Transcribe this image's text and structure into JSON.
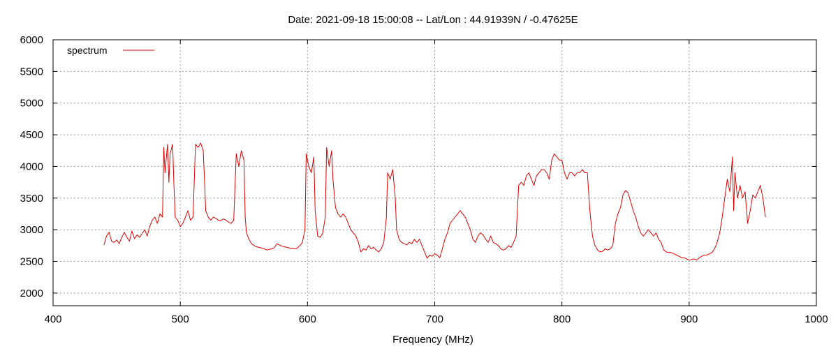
{
  "chart_data": {
    "type": "line",
    "title": "Date: 2021-09-18 15:00:08  --  Lat/Lon : 44.91939N / -0.47625E",
    "xlabel": "Frequency (MHz)",
    "ylabel": "",
    "xlim": [
      400,
      1000
    ],
    "ylim": [
      1800,
      6000
    ],
    "x_ticks": [
      400,
      500,
      600,
      700,
      800,
      900,
      1000
    ],
    "y_ticks": [
      2000,
      2500,
      3000,
      3500,
      4000,
      4500,
      5000,
      5500,
      6000
    ],
    "grid": true,
    "legend_position": "top-left",
    "colors": {
      "series": "#e00000",
      "grid": "#a0a0a0",
      "axis": "#000000"
    },
    "series": [
      {
        "name": "spectrum",
        "points": [
          [
            440,
            2760
          ],
          [
            442,
            2900
          ],
          [
            444,
            2960
          ],
          [
            446,
            2820
          ],
          [
            448,
            2800
          ],
          [
            450,
            2840
          ],
          [
            452,
            2780
          ],
          [
            454,
            2880
          ],
          [
            456,
            2960
          ],
          [
            458,
            2880
          ],
          [
            460,
            2820
          ],
          [
            462,
            2980
          ],
          [
            464,
            2860
          ],
          [
            466,
            2920
          ],
          [
            468,
            2880
          ],
          [
            470,
            2940
          ],
          [
            472,
            3000
          ],
          [
            474,
            2900
          ],
          [
            476,
            3050
          ],
          [
            478,
            3150
          ],
          [
            480,
            3200
          ],
          [
            482,
            3100
          ],
          [
            484,
            3250
          ],
          [
            486,
            3200
          ],
          [
            487,
            4300
          ],
          [
            488,
            3900
          ],
          [
            490,
            4350
          ],
          [
            491,
            3750
          ],
          [
            492,
            4200
          ],
          [
            494,
            4350
          ],
          [
            495,
            3700
          ],
          [
            496,
            3200
          ],
          [
            498,
            3150
          ],
          [
            500,
            3050
          ],
          [
            502,
            3100
          ],
          [
            504,
            3200
          ],
          [
            506,
            3300
          ],
          [
            508,
            3150
          ],
          [
            510,
            3200
          ],
          [
            512,
            4350
          ],
          [
            514,
            4300
          ],
          [
            516,
            4370
          ],
          [
            518,
            4250
          ],
          [
            519,
            3800
          ],
          [
            520,
            3300
          ],
          [
            522,
            3200
          ],
          [
            524,
            3150
          ],
          [
            526,
            3200
          ],
          [
            528,
            3180
          ],
          [
            530,
            3150
          ],
          [
            532,
            3150
          ],
          [
            534,
            3170
          ],
          [
            536,
            3150
          ],
          [
            538,
            3120
          ],
          [
            540,
            3100
          ],
          [
            542,
            3150
          ],
          [
            544,
            4200
          ],
          [
            546,
            4000
          ],
          [
            548,
            4250
          ],
          [
            550,
            4100
          ],
          [
            551,
            3200
          ],
          [
            552,
            2950
          ],
          [
            554,
            2850
          ],
          [
            556,
            2780
          ],
          [
            558,
            2750
          ],
          [
            560,
            2730
          ],
          [
            562,
            2720
          ],
          [
            564,
            2710
          ],
          [
            566,
            2700
          ],
          [
            568,
            2680
          ],
          [
            570,
            2690
          ],
          [
            572,
            2700
          ],
          [
            574,
            2720
          ],
          [
            576,
            2780
          ],
          [
            578,
            2760
          ],
          [
            580,
            2740
          ],
          [
            582,
            2730
          ],
          [
            584,
            2720
          ],
          [
            586,
            2710
          ],
          [
            588,
            2700
          ],
          [
            590,
            2700
          ],
          [
            592,
            2710
          ],
          [
            594,
            2750
          ],
          [
            596,
            2800
          ],
          [
            598,
            3000
          ],
          [
            599,
            4200
          ],
          [
            601,
            4000
          ],
          [
            603,
            3900
          ],
          [
            605,
            4150
          ],
          [
            606,
            3300
          ],
          [
            608,
            2900
          ],
          [
            610,
            2880
          ],
          [
            612,
            2950
          ],
          [
            614,
            3200
          ],
          [
            615,
            4300
          ],
          [
            617,
            4000
          ],
          [
            619,
            4250
          ],
          [
            620,
            3800
          ],
          [
            622,
            3350
          ],
          [
            624,
            3250
          ],
          [
            626,
            3200
          ],
          [
            628,
            3250
          ],
          [
            630,
            3200
          ],
          [
            632,
            3100
          ],
          [
            634,
            3000
          ],
          [
            636,
            2950
          ],
          [
            638,
            2900
          ],
          [
            640,
            2800
          ],
          [
            642,
            2650
          ],
          [
            644,
            2700
          ],
          [
            646,
            2680
          ],
          [
            648,
            2750
          ],
          [
            650,
            2700
          ],
          [
            652,
            2720
          ],
          [
            654,
            2680
          ],
          [
            656,
            2650
          ],
          [
            658,
            2700
          ],
          [
            660,
            2800
          ],
          [
            662,
            3200
          ],
          [
            663,
            3900
          ],
          [
            665,
            3800
          ],
          [
            667,
            3950
          ],
          [
            669,
            3500
          ],
          [
            670,
            3000
          ],
          [
            672,
            2850
          ],
          [
            674,
            2800
          ],
          [
            676,
            2780
          ],
          [
            678,
            2760
          ],
          [
            680,
            2800
          ],
          [
            682,
            2780
          ],
          [
            684,
            2850
          ],
          [
            686,
            2800
          ],
          [
            688,
            2850
          ],
          [
            690,
            2750
          ],
          [
            692,
            2650
          ],
          [
            694,
            2550
          ],
          [
            696,
            2600
          ],
          [
            698,
            2580
          ],
          [
            700,
            2620
          ],
          [
            702,
            2600
          ],
          [
            704,
            2560
          ],
          [
            706,
            2700
          ],
          [
            708,
            2850
          ],
          [
            710,
            2950
          ],
          [
            712,
            3100
          ],
          [
            714,
            3150
          ],
          [
            716,
            3200
          ],
          [
            718,
            3250
          ],
          [
            720,
            3300
          ],
          [
            722,
            3250
          ],
          [
            724,
            3200
          ],
          [
            726,
            3100
          ],
          [
            728,
            3000
          ],
          [
            730,
            2850
          ],
          [
            732,
            2800
          ],
          [
            734,
            2900
          ],
          [
            736,
            2950
          ],
          [
            738,
            2920
          ],
          [
            740,
            2850
          ],
          [
            742,
            2800
          ],
          [
            744,
            2900
          ],
          [
            746,
            2800
          ],
          [
            748,
            2780
          ],
          [
            750,
            2750
          ],
          [
            752,
            2700
          ],
          [
            754,
            2680
          ],
          [
            756,
            2700
          ],
          [
            758,
            2750
          ],
          [
            760,
            2720
          ],
          [
            762,
            2800
          ],
          [
            764,
            2900
          ],
          [
            766,
            3700
          ],
          [
            768,
            3750
          ],
          [
            770,
            3700
          ],
          [
            772,
            3850
          ],
          [
            774,
            3900
          ],
          [
            776,
            3800
          ],
          [
            778,
            3700
          ],
          [
            780,
            3850
          ],
          [
            782,
            3900
          ],
          [
            784,
            3950
          ],
          [
            786,
            3950
          ],
          [
            788,
            3900
          ],
          [
            790,
            3800
          ],
          [
            792,
            4100
          ],
          [
            794,
            4200
          ],
          [
            796,
            4150
          ],
          [
            798,
            4100
          ],
          [
            800,
            4100
          ],
          [
            802,
            3900
          ],
          [
            804,
            3800
          ],
          [
            806,
            3900
          ],
          [
            808,
            3900
          ],
          [
            810,
            3850
          ],
          [
            812,
            3900
          ],
          [
            814,
            3900
          ],
          [
            816,
            3950
          ],
          [
            818,
            3900
          ],
          [
            820,
            3900
          ],
          [
            822,
            3300
          ],
          [
            824,
            2900
          ],
          [
            826,
            2750
          ],
          [
            828,
            2680
          ],
          [
            830,
            2650
          ],
          [
            832,
            2660
          ],
          [
            834,
            2700
          ],
          [
            836,
            2680
          ],
          [
            838,
            2700
          ],
          [
            840,
            2750
          ],
          [
            842,
            3100
          ],
          [
            844,
            3250
          ],
          [
            846,
            3350
          ],
          [
            848,
            3550
          ],
          [
            850,
            3620
          ],
          [
            852,
            3580
          ],
          [
            854,
            3450
          ],
          [
            856,
            3300
          ],
          [
            858,
            3200
          ],
          [
            860,
            3050
          ],
          [
            862,
            2950
          ],
          [
            864,
            2900
          ],
          [
            866,
            2950
          ],
          [
            868,
            3000
          ],
          [
            870,
            2950
          ],
          [
            872,
            2900
          ],
          [
            874,
            2950
          ],
          [
            876,
            2850
          ],
          [
            878,
            2800
          ],
          [
            880,
            2680
          ],
          [
            882,
            2650
          ],
          [
            884,
            2640
          ],
          [
            886,
            2640
          ],
          [
            888,
            2620
          ],
          [
            890,
            2600
          ],
          [
            892,
            2580
          ],
          [
            894,
            2560
          ],
          [
            896,
            2560
          ],
          [
            898,
            2540
          ],
          [
            900,
            2520
          ],
          [
            902,
            2530
          ],
          [
            904,
            2540
          ],
          [
            906,
            2520
          ],
          [
            908,
            2560
          ],
          [
            910,
            2580
          ],
          [
            912,
            2600
          ],
          [
            914,
            2600
          ],
          [
            916,
            2620
          ],
          [
            918,
            2640
          ],
          [
            920,
            2700
          ],
          [
            922,
            2800
          ],
          [
            924,
            2950
          ],
          [
            926,
            3200
          ],
          [
            928,
            3500
          ],
          [
            930,
            3800
          ],
          [
            932,
            3600
          ],
          [
            934,
            4150
          ],
          [
            935,
            3300
          ],
          [
            936,
            3900
          ],
          [
            938,
            3500
          ],
          [
            940,
            3700
          ],
          [
            942,
            3500
          ],
          [
            944,
            3600
          ],
          [
            946,
            3100
          ],
          [
            948,
            3300
          ],
          [
            950,
            3550
          ],
          [
            952,
            3500
          ],
          [
            954,
            3600
          ],
          [
            956,
            3700
          ],
          [
            958,
            3500
          ],
          [
            960,
            3200
          ]
        ]
      }
    ]
  }
}
